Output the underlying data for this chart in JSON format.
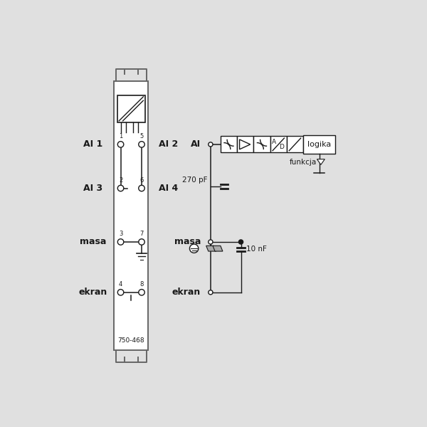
{
  "bg_color": "#e0e0e0",
  "line_color": "#1a1a1a",
  "text_color": "#1a1a1a",
  "part_number": "750-468",
  "cap_label1": "270 pF",
  "cap_label2": "10 nF",
  "logika_label": "logika",
  "funkcja_label": "funkcja"
}
